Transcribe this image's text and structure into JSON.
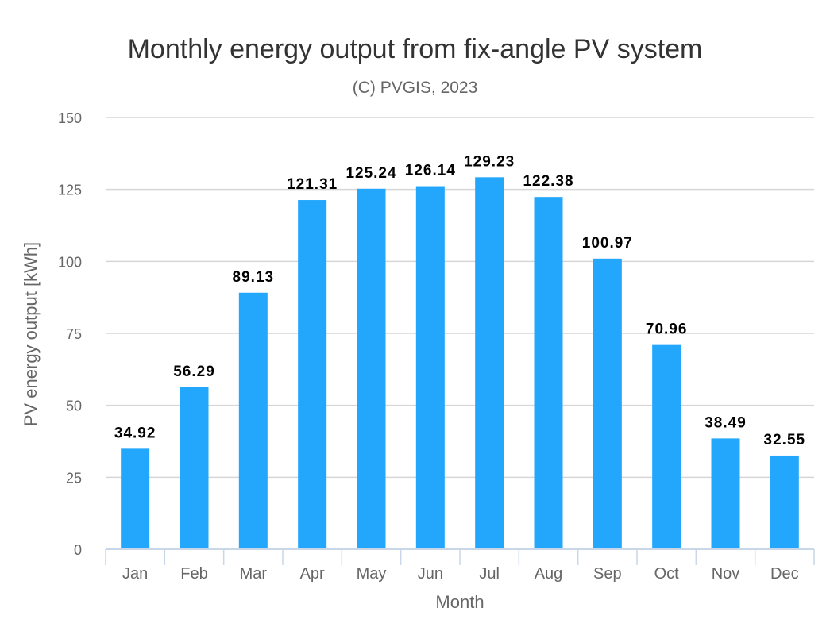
{
  "chart_data": {
    "type": "bar",
    "title": "Monthly energy output from fix-angle PV system",
    "subtitle": "(C) PVGIS, 2023",
    "xlabel": "Month",
    "ylabel": "PV energy output [kWh]",
    "categories": [
      "Jan",
      "Feb",
      "Mar",
      "Apr",
      "May",
      "Jun",
      "Jul",
      "Aug",
      "Sep",
      "Oct",
      "Nov",
      "Dec"
    ],
    "values": [
      34.92,
      56.29,
      89.13,
      121.31,
      125.24,
      126.14,
      129.23,
      122.38,
      100.97,
      70.96,
      38.49,
      32.55
    ],
    "data_labels": [
      "34.92",
      "56.29",
      "89.13",
      "121.31",
      "125.24",
      "126.14",
      "129.23",
      "122.38",
      "100.97",
      "70.96",
      "38.49",
      "32.55"
    ],
    "ylim": [
      0,
      150
    ],
    "yticks": [
      "0",
      "25",
      "50",
      "75",
      "100",
      "125",
      "150"
    ],
    "grid": true,
    "bar_color": "#22a7fd",
    "grid_color": "#d6d6d6",
    "axis_color": "#c9d7e8"
  }
}
